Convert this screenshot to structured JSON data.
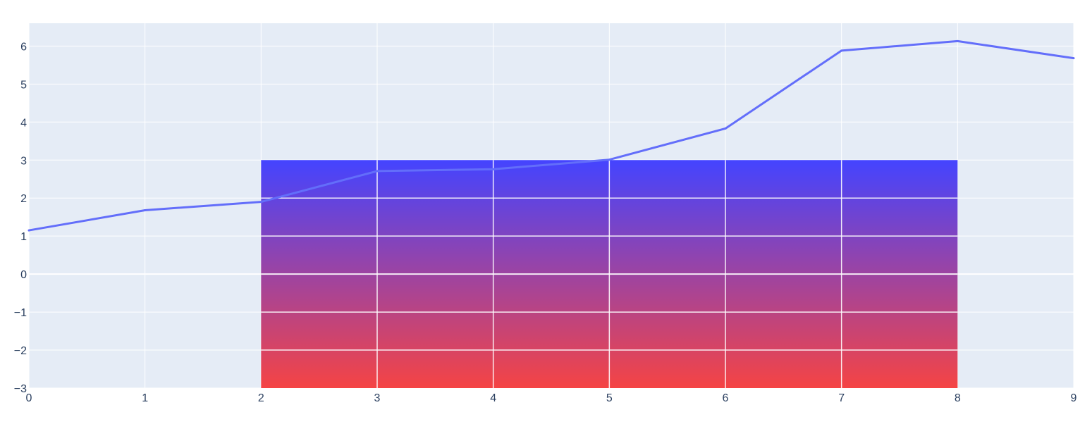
{
  "chart_data": {
    "type": "line",
    "title": "",
    "xlabel": "",
    "ylabel": "",
    "grid": true,
    "legend": "none",
    "xlim": [
      0,
      9
    ],
    "ylim": [
      -3,
      6.6
    ],
    "x_ticks": [
      0,
      1,
      2,
      3,
      4,
      5,
      6,
      7,
      8,
      9
    ],
    "y_ticks": [
      -3,
      -2,
      -1,
      0,
      1,
      2,
      3,
      4,
      5,
      6
    ],
    "x_tick_labels": [
      "0",
      "1",
      "2",
      "3",
      "4",
      "5",
      "6",
      "7",
      "8",
      "9"
    ],
    "y_tick_labels": [
      "−3",
      "−2",
      "−1",
      "0",
      "1",
      "2",
      "3",
      "4",
      "5",
      "6"
    ],
    "series": [
      {
        "x": [
          0,
          1,
          2,
          3,
          4,
          5,
          6,
          7,
          8,
          9
        ],
        "y": [
          1.15,
          1.68,
          1.9,
          2.71,
          2.76,
          3.01,
          3.83,
          5.88,
          6.13,
          5.68
        ],
        "color": "#636efa"
      }
    ],
    "shapes": [
      {
        "type": "rect",
        "x0": 2,
        "x1": 8,
        "y0": -3,
        "y1": 3,
        "fill_top_color": "#4444ff",
        "fill_bottom_color": "#f54444"
      }
    ],
    "colors": {
      "plot_background": "#e5ecf6",
      "grid": "#ffffff",
      "tick_text": "#2a3f5f"
    }
  }
}
